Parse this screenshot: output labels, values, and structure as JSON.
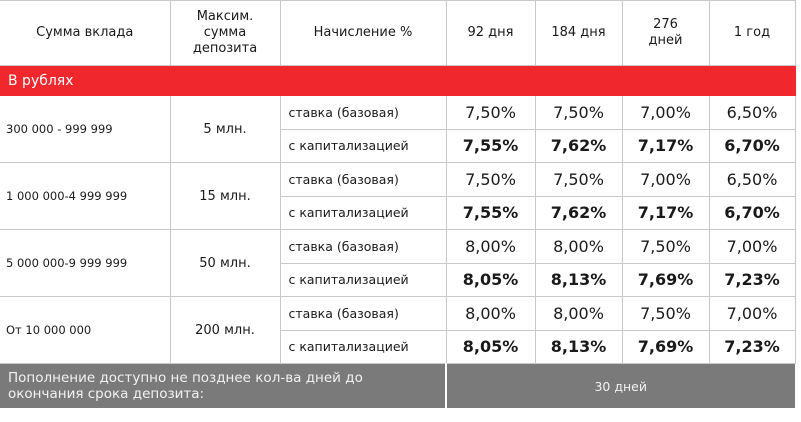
{
  "header": {
    "col_amount": "Сумма вклада",
    "col_max": "Максим.\nсумма\nдепозита",
    "col_accrual": "Начисление %",
    "terms": [
      "92 дня",
      "184 дня",
      "276\nдней",
      "1 год"
    ]
  },
  "section": {
    "label": "В рублях"
  },
  "rows": [
    {
      "amount": "300 000 - 999 999",
      "max": "5 млн.",
      "base_label": "ставка (базовая)",
      "base_rates": [
        "7,50%",
        "7,50%",
        "7,00%",
        "6,50%"
      ],
      "cap_label": "с капитализацией",
      "cap_rates": [
        "7,55%",
        "7,62%",
        "7,17%",
        "6,70%"
      ]
    },
    {
      "amount": "1 000 000-4 999 999",
      "max": "15 млн.",
      "base_label": "ставка (базовая)",
      "base_rates": [
        "7,50%",
        "7,50%",
        "7,00%",
        "6,50%"
      ],
      "cap_label": "с капитализацией",
      "cap_rates": [
        "7,55%",
        "7,62%",
        "7,17%",
        "6,70%"
      ]
    },
    {
      "amount": "5 000 000-9 999 999",
      "max": "50 млн.",
      "base_label": "ставка (базовая)",
      "base_rates": [
        "8,00%",
        "8,00%",
        "7,50%",
        "7,00%"
      ],
      "cap_label": "с капитализацией",
      "cap_rates": [
        "8,05%",
        "8,13%",
        "7,69%",
        "7,23%"
      ]
    },
    {
      "amount": "От 10 000 000",
      "max": "200 млн.",
      "base_label": "ставка (базовая)",
      "base_rates": [
        "8,00%",
        "8,00%",
        "7,50%",
        "7,00%"
      ],
      "cap_label": "с капитализацией",
      "cap_rates": [
        "8,05%",
        "8,13%",
        "7,69%",
        "7,23%"
      ]
    }
  ],
  "footer": {
    "note": "Пополнение доступно не позднее кол-ва дней до\nокончания срока депозита:",
    "days": "30 дней"
  },
  "colors": {
    "accent": "#f0282d",
    "footer_bg": "#7a7a7a"
  }
}
